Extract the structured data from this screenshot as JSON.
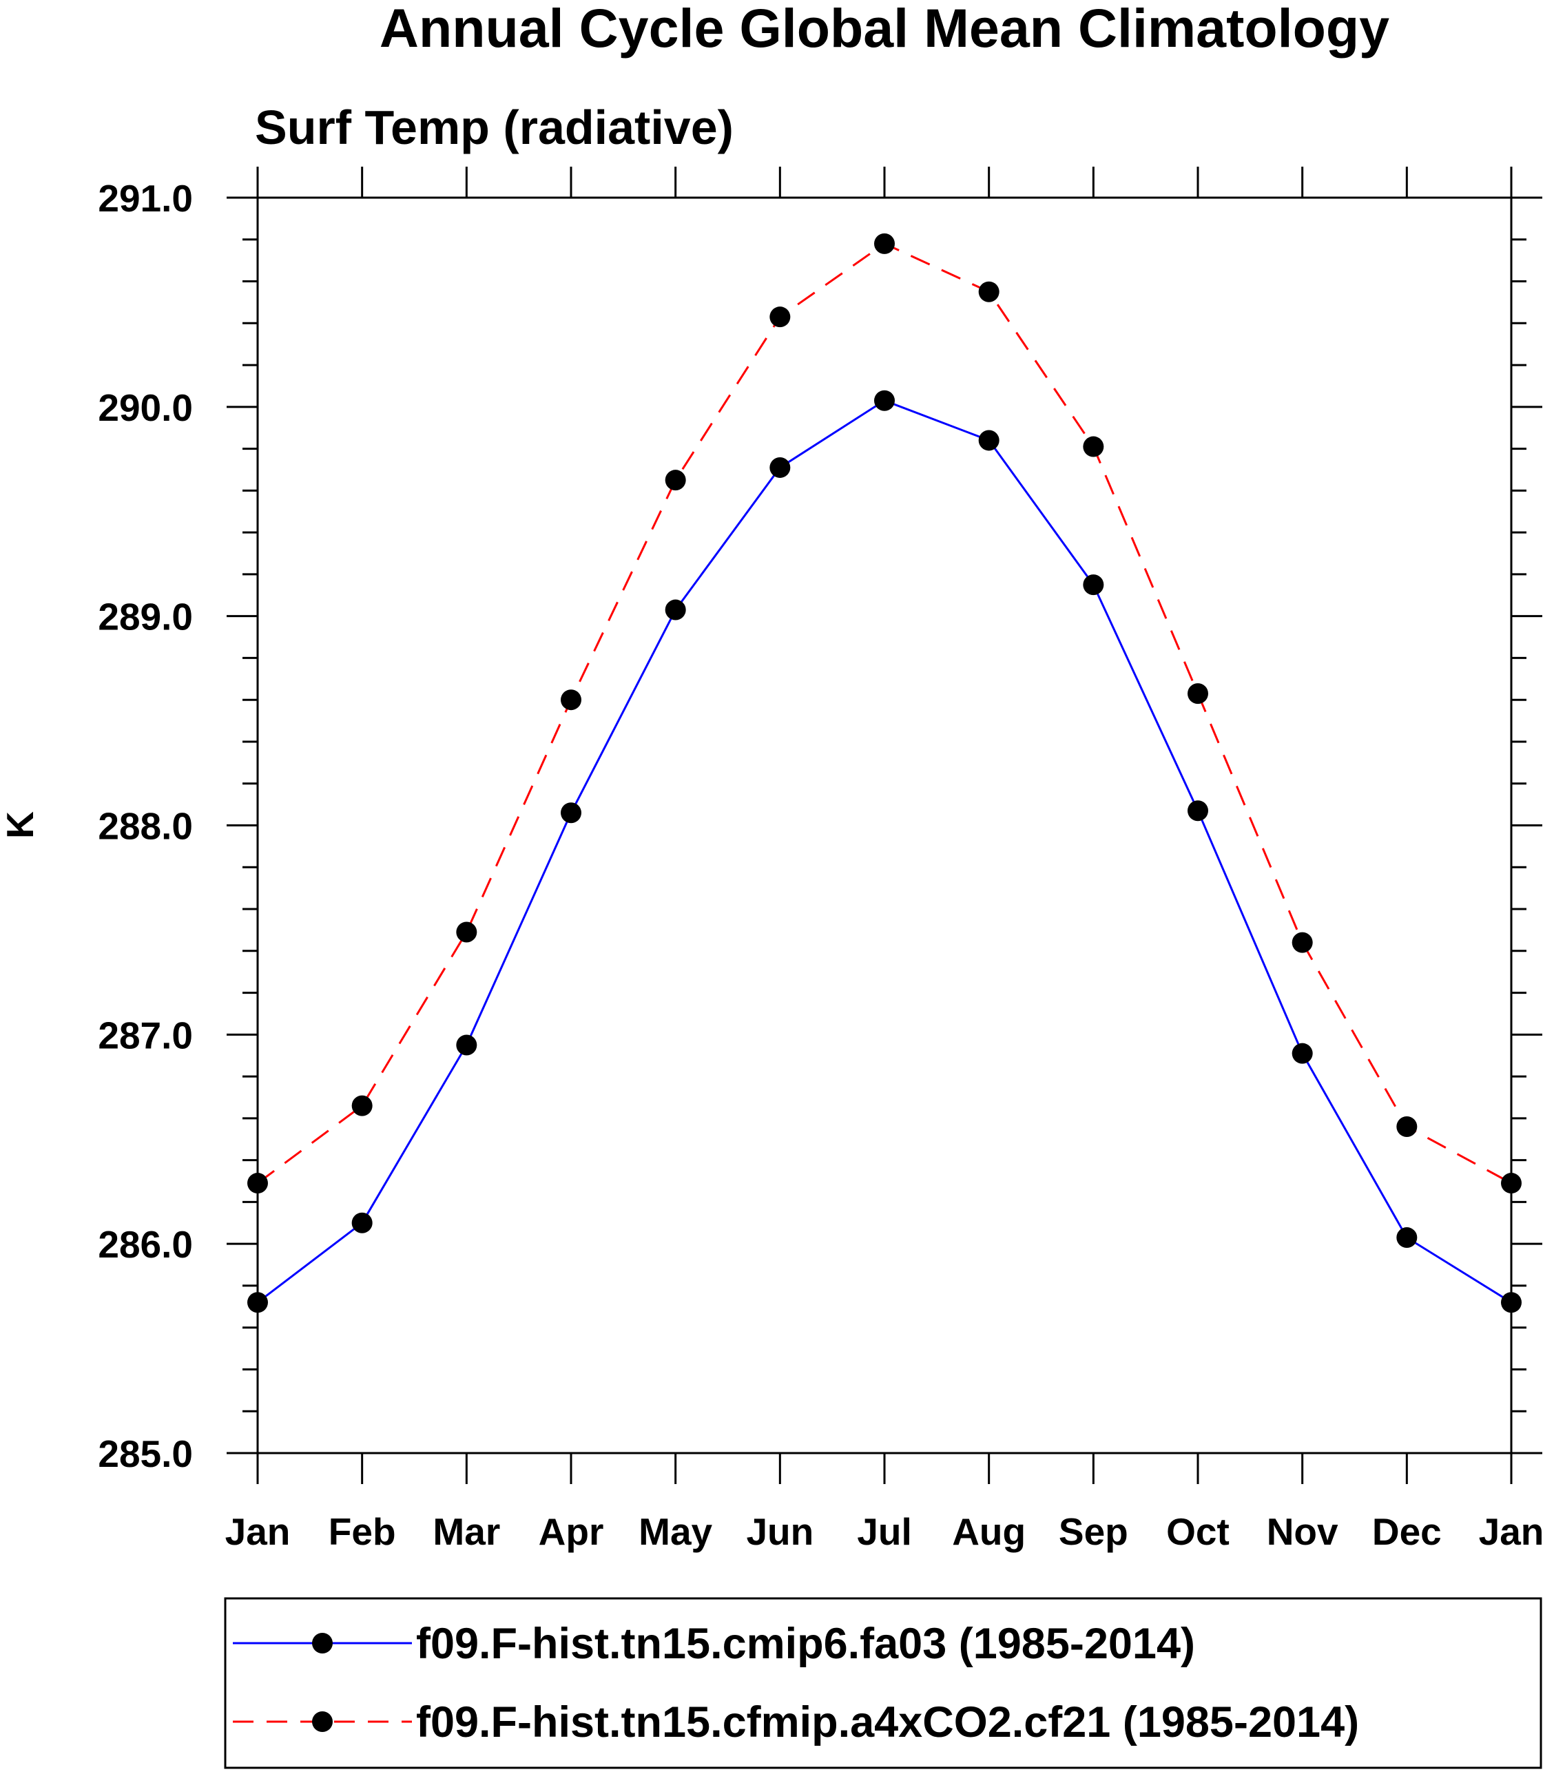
{
  "chart_data": {
    "type": "line",
    "title": "Annual Cycle Global Mean Climatology",
    "subtitle": "Surf Temp (radiative)",
    "xlabel": "",
    "ylabel": "K",
    "ylim": [
      285.0,
      291.0
    ],
    "yticks": [
      "285.0",
      "286.0",
      "287.0",
      "288.0",
      "289.0",
      "290.0",
      "291.0"
    ],
    "categories": [
      "Jan",
      "Feb",
      "Mar",
      "Apr",
      "May",
      "Jun",
      "Jul",
      "Aug",
      "Sep",
      "Oct",
      "Nov",
      "Dec",
      "Jan"
    ],
    "series": [
      {
        "name": "f09.F-hist.tn15.cmip6.fa03 (1985-2014)",
        "color": "#0000ff",
        "line_style": "solid",
        "marker": "filled-circle",
        "values": [
          285.72,
          286.1,
          286.95,
          288.06,
          289.03,
          289.71,
          290.03,
          289.84,
          289.15,
          288.07,
          286.91,
          286.03,
          285.72
        ]
      },
      {
        "name": "f09.F-hist.tn15.cfmip.a4xCO2.cf21 (1985-2014)",
        "color": "#ff0000",
        "line_style": "dashed",
        "marker": "filled-circle",
        "values": [
          286.29,
          286.66,
          287.49,
          288.6,
          289.65,
          290.43,
          290.78,
          290.55,
          289.81,
          288.63,
          287.44,
          286.56,
          286.29
        ]
      }
    ],
    "grid": false,
    "legend_position": "bottom"
  }
}
